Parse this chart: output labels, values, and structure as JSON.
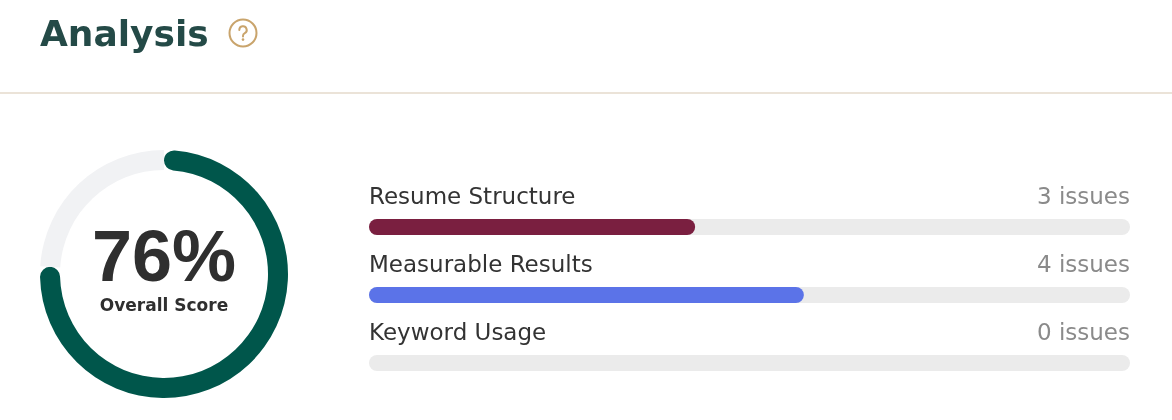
{
  "chart_data": [
    {
      "type": "donut",
      "title": "Analysis",
      "categories": [
        "Overall Score",
        null
      ],
      "values": [
        76,
        24
      ],
      "colors": [
        "#00564b",
        "#f1f2f4"
      ],
      "value_labels": [
        "76%",
        null
      ]
    },
    {
      "type": "bar",
      "orientation": "horizontal",
      "categories": [
        "Resume Structure",
        "Measurable Results",
        "Keyword Usage"
      ],
      "values": [
        3,
        4,
        0
      ],
      "colors": [
        "#7a1f40",
        "#5b73e8",
        null
      ],
      "value_labels": [
        "3 issues",
        "4 issues",
        "0 issues"
      ],
      "bands": [
        {
          "axis": "y",
          "from": "Resume Structure",
          "to": "Resume Structure",
          "color": "#ebebeb"
        },
        {
          "axis": "y",
          "from": "Measurable Results",
          "to": "Measurable Results",
          "color": "#ebebeb"
        },
        {
          "axis": "y",
          "from": "Keyword Usage",
          "to": "Keyword Usage",
          "color": "#ebebeb"
        }
      ]
    }
  ]
}
